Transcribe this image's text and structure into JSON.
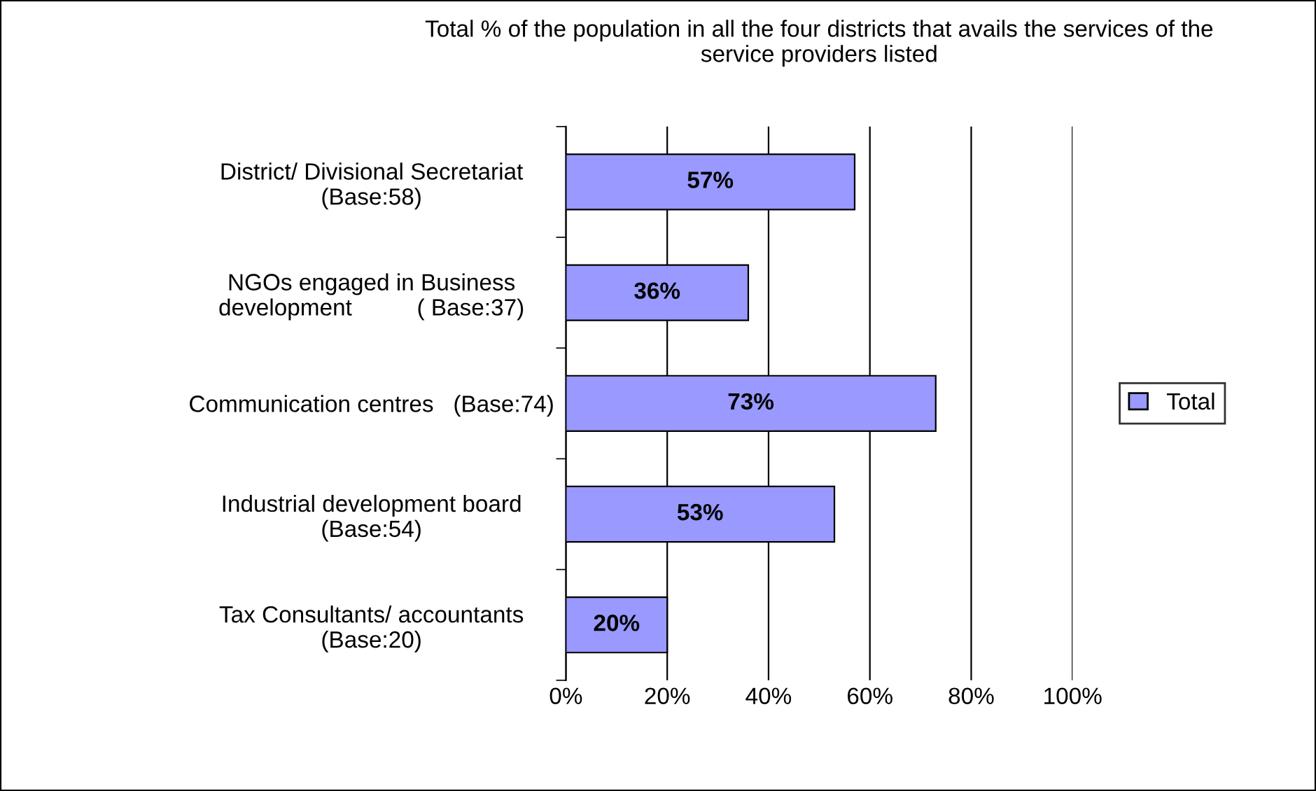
{
  "chart_data": {
    "type": "bar",
    "orientation": "horizontal",
    "title": "Total % of the population in all the four districts that avails the services of the\nservice providers listed",
    "categories": [
      "District/ Divisional Secretariat\n(Base:58)",
      "NGOs engaged in Business\ndevelopment          ( Base:37)",
      "Communication centres   (Base:74)",
      "Industrial development board\n(Base:54)",
      "Tax Consultants/ accountants\n(Base:20)"
    ],
    "series": [
      {
        "name": "Total",
        "color": "#9999ff",
        "values": [
          57,
          36,
          73,
          53,
          20
        ],
        "value_labels": [
          "57%",
          "36%",
          "73%",
          "53%",
          "20%"
        ]
      }
    ],
    "xlim": [
      0,
      100
    ],
    "xticks": [
      {
        "value": 0,
        "label": "0%"
      },
      {
        "value": 20,
        "label": "20%"
      },
      {
        "value": 40,
        "label": "40%"
      },
      {
        "value": 60,
        "label": "60%"
      },
      {
        "value": 80,
        "label": "80%"
      },
      {
        "value": 100,
        "label": "100%"
      }
    ],
    "grid": "x",
    "legend": "right"
  }
}
